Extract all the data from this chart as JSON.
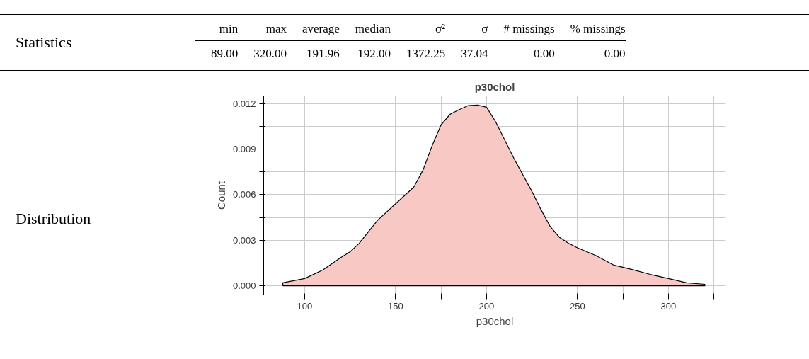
{
  "chart_data": {
    "type": "area",
    "title": "p30chol",
    "xlabel": "p30chol",
    "ylabel": "Count",
    "annotations": [
      "Statistics",
      "min",
      "max",
      "average",
      "median",
      "σ²",
      "σ",
      "# missings",
      "% missings",
      "89.00",
      "320.00",
      "191.96",
      "192.00",
      "1372.25",
      "37.04",
      "0.00",
      "0.00",
      "Distribution"
    ],
    "x": [
      88,
      100,
      110,
      120,
      125,
      130,
      140,
      150,
      160,
      165,
      170,
      175,
      180,
      185,
      190,
      195,
      200,
      205,
      210,
      215,
      220,
      225,
      230,
      235,
      240,
      245,
      250,
      260,
      270,
      280,
      290,
      300,
      310,
      320
    ],
    "series": [
      {
        "color": "#f8c8c5",
        "values": [
          0.0002,
          0.00048,
          0.00104,
          0.00187,
          0.00224,
          0.0028,
          0.0043,
          0.0054,
          0.0065,
          0.0076,
          0.0092,
          0.0106,
          0.0113,
          0.0116,
          0.01187,
          0.0119,
          0.01176,
          0.0108,
          0.0096,
          0.0084,
          0.0073,
          0.0062,
          0.005,
          0.0039,
          0.0032,
          0.0028,
          0.0025,
          0.002,
          0.00136,
          0.00107,
          0.00075,
          0.00048,
          0.0002,
          0.0001
        ]
      }
    ],
    "xlim": [
      77.45,
      331.55
    ],
    "ylim": [
      -0.0006,
      0.0125
    ],
    "xticks": [
      100,
      {
        "value": 125,
        "label": null
      },
      150,
      {
        "value": 175,
        "label": null
      },
      200,
      {
        "value": 225,
        "label": null
      },
      250,
      {
        "value": 275,
        "label": null
      },
      300,
      {
        "value": 325,
        "label": null
      }
    ],
    "yticks": [
      {
        "value": 0,
        "label": "0.000"
      },
      {
        "value": 0.0015,
        "label": null
      },
      0.003,
      {
        "value": 0.0045,
        "label": null
      },
      0.006,
      {
        "value": 0.0075,
        "label": null
      },
      0.009,
      {
        "value": 0.0105,
        "label": null
      },
      0.012
    ],
    "grid": true
  }
}
